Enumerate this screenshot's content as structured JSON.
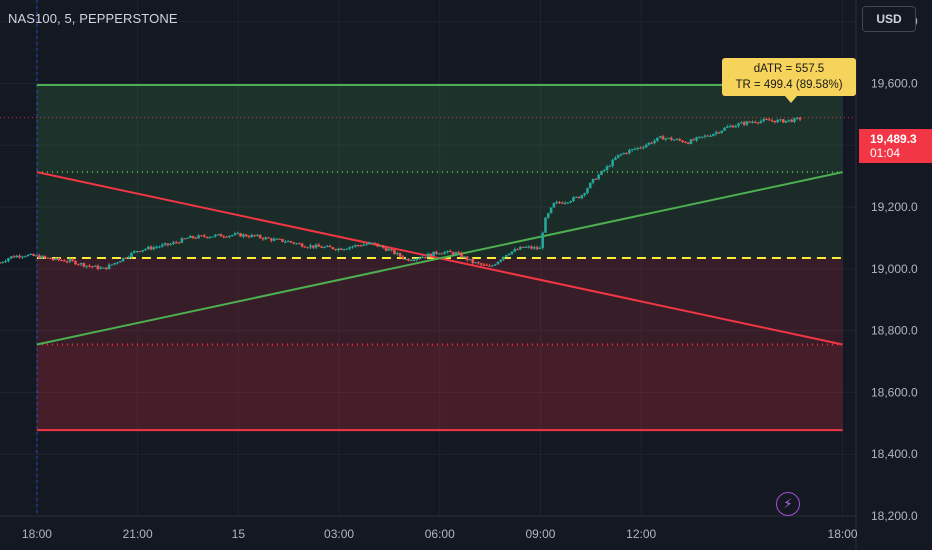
{
  "header": {
    "symbol": "NAS100, 5, PEPPERSTONE"
  },
  "currency": {
    "label": "USD"
  },
  "last_price": {
    "price_label": "19,489.3",
    "timer_label": "01:04"
  },
  "indicator": {
    "datr_label": "dATR = 557.5",
    "tr_label": "TR = 499.4 (89.58%)"
  },
  "bolt": {
    "glyph": "⚡",
    "icon": "bolt-icon"
  },
  "colors": {
    "background": "#141823",
    "grid": "#1f2330",
    "green": "#4caf50",
    "red": "#f23645",
    "yellow": "#ffeb3b",
    "candle_up": "#26a69a",
    "candle_down": "#ef5350",
    "axis_text": "#b2b5be"
  },
  "chart_data": {
    "type": "candlestick",
    "y_ticks": [
      "19,800.0",
      "19,600.0",
      "19,400.0",
      "19,200.0",
      "19,000.0",
      "18,800.0",
      "18,600.0",
      "18,400.0",
      "18,200.0"
    ],
    "y_tick_values": [
      19800,
      19600,
      19400,
      19200,
      19000,
      18800,
      18600,
      18400,
      18200
    ],
    "x_ticks": [
      "18:00",
      "21:00",
      "15",
      "03:00",
      "06:00",
      "09:00",
      "12:00",
      "18:00"
    ],
    "x_tick_hours": [
      0,
      3,
      6,
      9,
      12,
      15,
      18,
      24
    ],
    "ylim": [
      18200,
      19870
    ],
    "xlim_hours": [
      -1.1,
      24.4
    ],
    "session_start_hour": 0,
    "levels": {
      "upper_band": 19595,
      "upper_mid": 19313,
      "open_level": 19035,
      "lower_mid": 18755,
      "lower_band": 18478,
      "last_price": 19489.3
    },
    "diagonals": [
      {
        "from_hour": 0,
        "from": 19313,
        "to_hour": 24,
        "to": 18755,
        "color": "red"
      },
      {
        "from_hour": 0,
        "from": 18755,
        "to_hour": 24,
        "to": 19313,
        "color": "green"
      }
    ],
    "price_path": [
      [
        -1.1,
        19020
      ],
      [
        -0.8,
        19038
      ],
      [
        -0.4,
        19045
      ],
      [
        0,
        19040
      ],
      [
        0.5,
        19030
      ],
      [
        1.0,
        19025
      ],
      [
        1.5,
        19010
      ],
      [
        2.0,
        19000
      ],
      [
        2.5,
        19030
      ],
      [
        3.0,
        19060
      ],
      [
        3.5,
        19070
      ],
      [
        4.0,
        19080
      ],
      [
        4.5,
        19100
      ],
      [
        5.0,
        19105
      ],
      [
        5.5,
        19108
      ],
      [
        6.0,
        19110
      ],
      [
        6.5,
        19105
      ],
      [
        7.0,
        19095
      ],
      [
        7.5,
        19088
      ],
      [
        8.0,
        19075
      ],
      [
        8.5,
        19070
      ],
      [
        9.0,
        19065
      ],
      [
        9.5,
        19075
      ],
      [
        10.0,
        19082
      ],
      [
        10.5,
        19060
      ],
      [
        11.0,
        19030
      ],
      [
        11.5,
        19040
      ],
      [
        12.0,
        19055
      ],
      [
        12.5,
        19050
      ],
      [
        13.0,
        19020
      ],
      [
        13.5,
        19005
      ],
      [
        14.0,
        19050
      ],
      [
        14.5,
        19070
      ],
      [
        15.0,
        19065
      ],
      [
        15.1,
        19150
      ],
      [
        15.4,
        19210
      ],
      [
        15.8,
        19220
      ],
      [
        16.2,
        19235
      ],
      [
        16.6,
        19290
      ],
      [
        17.0,
        19330
      ],
      [
        17.3,
        19365
      ],
      [
        17.6,
        19380
      ],
      [
        18.0,
        19395
      ],
      [
        18.3,
        19410
      ],
      [
        18.6,
        19425
      ],
      [
        19.0,
        19418
      ],
      [
        19.4,
        19410
      ],
      [
        19.8,
        19425
      ],
      [
        20.2,
        19440
      ],
      [
        20.6,
        19460
      ],
      [
        21.0,
        19470
      ],
      [
        21.4,
        19478
      ],
      [
        21.8,
        19480
      ],
      [
        22.2,
        19478
      ],
      [
        22.6,
        19482
      ],
      [
        22.8,
        19489
      ]
    ]
  }
}
